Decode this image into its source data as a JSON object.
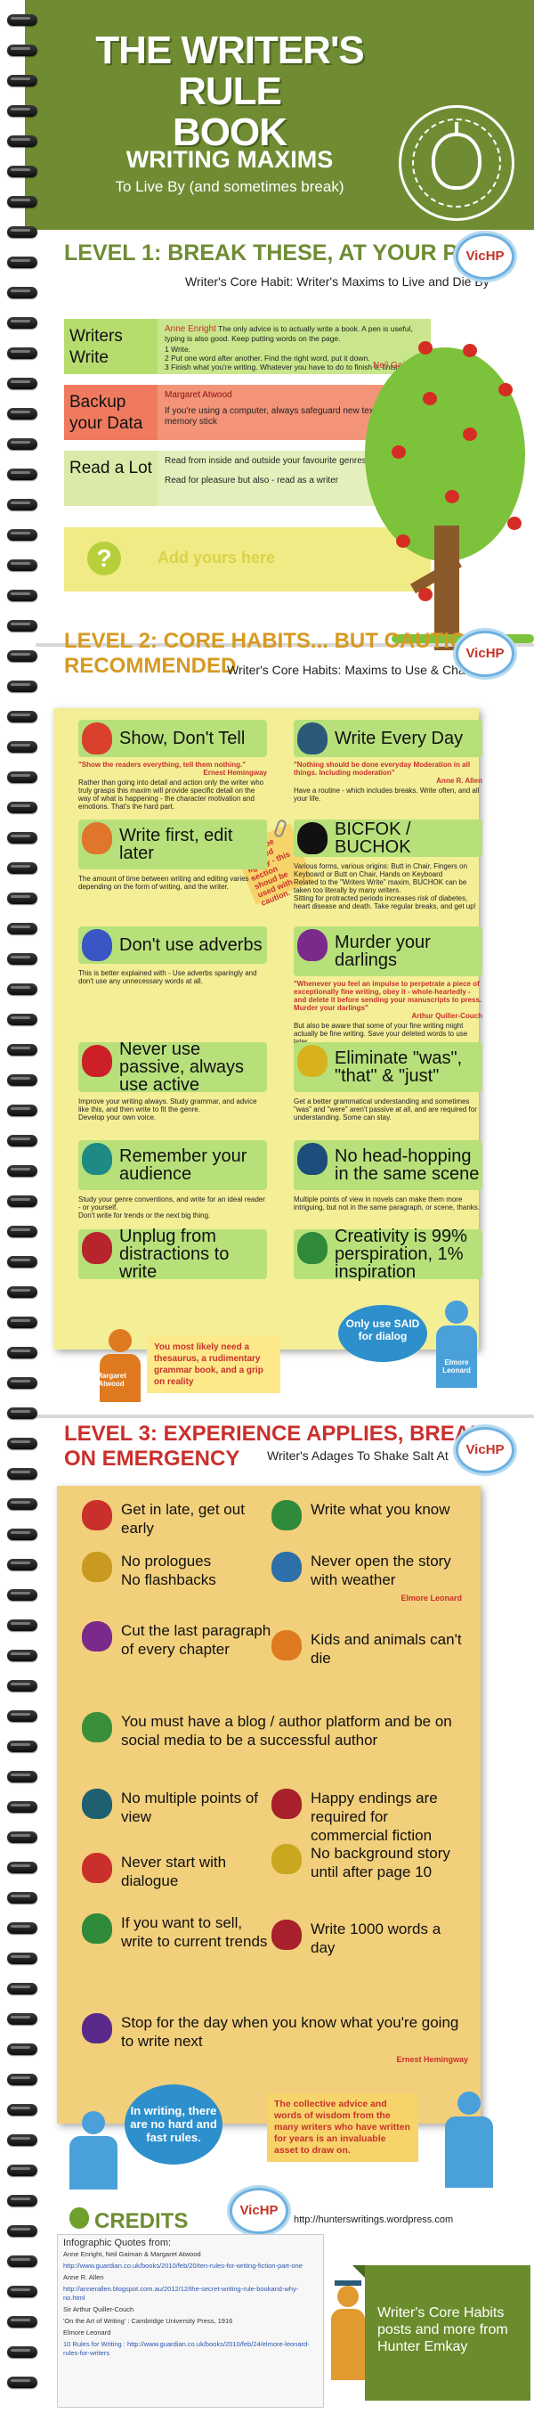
{
  "header": {
    "title_line1": "THE WRITER'S RULE",
    "title_line2": "BOOK",
    "subtitle": "WRITING MAXIMS",
    "tagline": "To Live By (and sometimes break)"
  },
  "level1": {
    "heading": "LEVEL 1: BREAK THESE, AT YOUR PERIL",
    "subheading": "Writer's Core Habit: Writer's Maxims to Live and Die By",
    "badge": "VicHP",
    "rows": [
      {
        "label": "Writers Write",
        "author": "Anne Enright",
        "text": "The only advice is to actually write a book. A pen is useful, typing is also good. Keep putting words on the page.",
        "list": "1 Write.\n2 Put one word after another. Find the right word, put it down.\n3 Finish what you're writing. Whatever you have to do to finish it, finish it.",
        "author2": "Neil Gaiman",
        "color": "#b6dc6e"
      },
      {
        "label": "Backup your Data",
        "author": "Margaret Atwood",
        "text": "If you're using a computer, always safeguard new text with a memory stick",
        "color": "#f07a5e"
      },
      {
        "label": "Read a Lot",
        "text": "Read from inside and outside your favourite genres.",
        "text2": "Read for pleasure but also - read as a writer",
        "color": "#dbeaa8"
      },
      {
        "label": "?",
        "text": "Add yours here",
        "color": "#f0eb84"
      }
    ]
  },
  "level2": {
    "heading_line1": "LEVEL 2: CORE HABITS... BUT CAUTION",
    "heading_line2": "RECOMMENDED",
    "subheading": "Writer's Core Habits: Maxims to Use & Change",
    "badge": "VicHP",
    "sticky_note": "Not to be handled lightly - this section shoud be used with caution.",
    "habits": [
      {
        "title": "Show, Don't Tell",
        "quote": "\"Show the readers everything, tell them nothing.\"",
        "author": "Ernest Hemingway",
        "text": "Rather than going into detail and action only the writer who truly grasps this maxim will provide specific detail on the way of what is happening - the character motivation and emotions. That's the hard part.",
        "icon": "#d9412c"
      },
      {
        "title": "Write Every Day",
        "quote": "\"Nothing should be done everyday Moderation in all things. Including moderation\"",
        "author": "Anne R. Allen",
        "text": "Have a routine - which includes breaks. Write often, and all your life.",
        "icon": "#2b5a78"
      },
      {
        "title": "Write first, edit later",
        "text": "The amount of time between writing and editing varies - depending on the form of writing, and the writer.",
        "icon": "#e0752c"
      },
      {
        "title": "BICFOK / BUCHOK",
        "text": "Various forms, various origins: Butt in Chair, Fingers on Keyboard or Butt on Chair, Hands on Keyboard\nRelated to the \"Writers Write\" maxim, BUCHOK can be taken too literally by many writers.\nSitting for protracted periods increases risk of diabetes, heart disease and death. Take regular breaks, and get up!",
        "icon": "#111111"
      },
      {
        "title": "Don't use adverbs",
        "text": "This is better explained with - Use adverbs sparingly and don't use any unnecessary words at all.",
        "icon": "#3a56c4"
      },
      {
        "title": "Murder your darlings",
        "quote": "\"Whenever you feel an impulse to perpetrate a piece of exceptionally fine writing, obey it - whole-heartedly - and delete it before sending your manuscripts to press. Murder your darlings\"",
        "author": "Arthur Quiller-Couch",
        "text": "But also be aware that some of your fine writing might actually be fine writing. Save your deleted words to use later.",
        "icon": "#7a2a8a"
      },
      {
        "title": "Never use passive, always use active",
        "text": "Improve your writing always. Study grammar, and advice like this, and then write to fit the genre.\nDevelop your own voice.",
        "icon": "#cc2027"
      },
      {
        "title": "Eliminate \"was\", \"that\" & \"just\"",
        "text": "Get a better grammatical understanding and sometimes \"was\" and \"were\" aren't passive at all, and are required for understanding. Some can stay.",
        "icon": "#d8b21c"
      },
      {
        "title": "Remember your audience",
        "text": "Study your genre conventions, and write for an ideal reader - or yourself.\nDon't write for trends or the next big thing.",
        "icon": "#1d8a84"
      },
      {
        "title": "No head-hopping in the same scene",
        "text": "Multiple points of view in novels can make them more intriguing, but not in the same paragraph, or scene, thanks.",
        "icon": "#1d4d7a"
      },
      {
        "title": "Unplug from distractions to write",
        "icon": "#b8242c"
      },
      {
        "title": "Creativity is 99% perspiration, 1% inspiration",
        "icon": "#2f8a3a"
      }
    ],
    "margaret_note": "You most likely need a thesaurus, a rudimentary grammar book, and a grip on reality",
    "margaret_name": "Margaret Atwood",
    "elmore_bubble": "Only use SAID for dialog",
    "elmore_name": "Elmore Leonard"
  },
  "level3": {
    "heading_line1": "LEVEL 3: EXPERIENCE APPLIES, BREAK",
    "heading_line2": "ON EMERGENCY",
    "subheading": "Writer's Adages To Shake Salt At",
    "badge": "VicHP",
    "adages": [
      {
        "text": "Get in late, get out early",
        "icon": "#c9302c"
      },
      {
        "text": "Write what you know",
        "icon": "#2f8a3a"
      },
      {
        "text": "No prologues\nNo flashbacks",
        "icon": "#c99a20"
      },
      {
        "text": "Never open the story with weather",
        "icon": "#2d6fa8",
        "author": "Elmore Leonard"
      },
      {
        "text": "Cut the last paragraph of every chapter",
        "icon": "#7a2a8a"
      },
      {
        "text": "Kids and animals can't die",
        "icon": "#e07a20"
      },
      {
        "text": "You must have a blog / author platform and be on social media to be a successful author",
        "icon": "#3a8f3a"
      },
      {
        "text": "No multiple points of view",
        "icon": "#1f5f6f"
      },
      {
        "text": "Happy endings are required for commercial fiction",
        "icon": "#a8202c"
      },
      {
        "text": "Never start with dialogue",
        "icon": "#c9302c"
      },
      {
        "text": "No background story until after page 10",
        "icon": "#c9a820"
      },
      {
        "text": "If you want to sell, write to current trends",
        "icon": "#2f8a3a"
      },
      {
        "text": "Write 1000 words a day",
        "icon": "#a8202c"
      },
      {
        "text": "Stop for the day when you know what you're going to write next",
        "icon": "#5a2a8a",
        "author": "Ernest Hemingway"
      }
    ],
    "bubble_left": "In writing, there are no hard and fast rules.",
    "bubble_right": "The collective advice and words of wisdom from the many writers who have written for years is an invaluable asset to draw on."
  },
  "credits": {
    "heading": "CREDITS",
    "badge": "VicHP",
    "url": "http://hunterswritings.wordpress.com",
    "quotes_title": "Infographic Quotes from:",
    "lines": [
      "Anne Enright, Neil Gaiman & Margaret Atwood",
      "http://www.guardian.co.uk/books/2010/feb/20/ten-rules-for-writing-fiction-part-one",
      "Anne R. Allen",
      "http://annerallen.blogspot.com.au/2012/12/the-secret-writing-rule-bookand-why-no.html",
      "Sir Arthur Quiller-Couch",
      "'On the Art of Writing' : Cambridge University Press, 1916",
      "Elmore Leonard",
      "10 Rules for Writing : http://www.guardian.co.uk/books/2010/feb/24/elmore-leonard-rules-for-writers"
    ],
    "banner": "Writer's Core Habits posts and more from Hunter Emkay"
  }
}
